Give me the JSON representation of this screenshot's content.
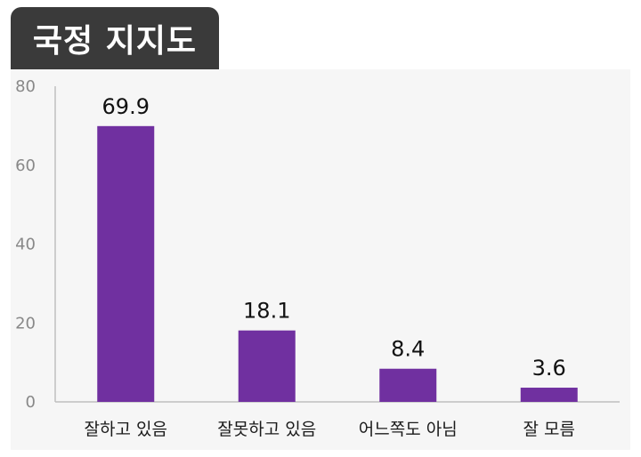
{
  "title": "국정 지지도",
  "colors": {
    "bar": "#7030a0",
    "title_bg": "#3a3a3a",
    "plot_bg": "#f6f6f6"
  },
  "chart_data": {
    "type": "bar",
    "title": "국정 지지도",
    "categories": [
      "잘하고 있음",
      "잘못하고 있음",
      "어느쪽도 아님",
      "잘 모름"
    ],
    "values": [
      69.9,
      18.1,
      8.4,
      3.6
    ],
    "value_labels": [
      "69.9",
      "18.1",
      "8.4",
      "3.6"
    ],
    "ylim": [
      0,
      80
    ],
    "yticks": [
      0,
      20,
      40,
      60,
      80
    ],
    "grid": false,
    "legend": "none"
  }
}
